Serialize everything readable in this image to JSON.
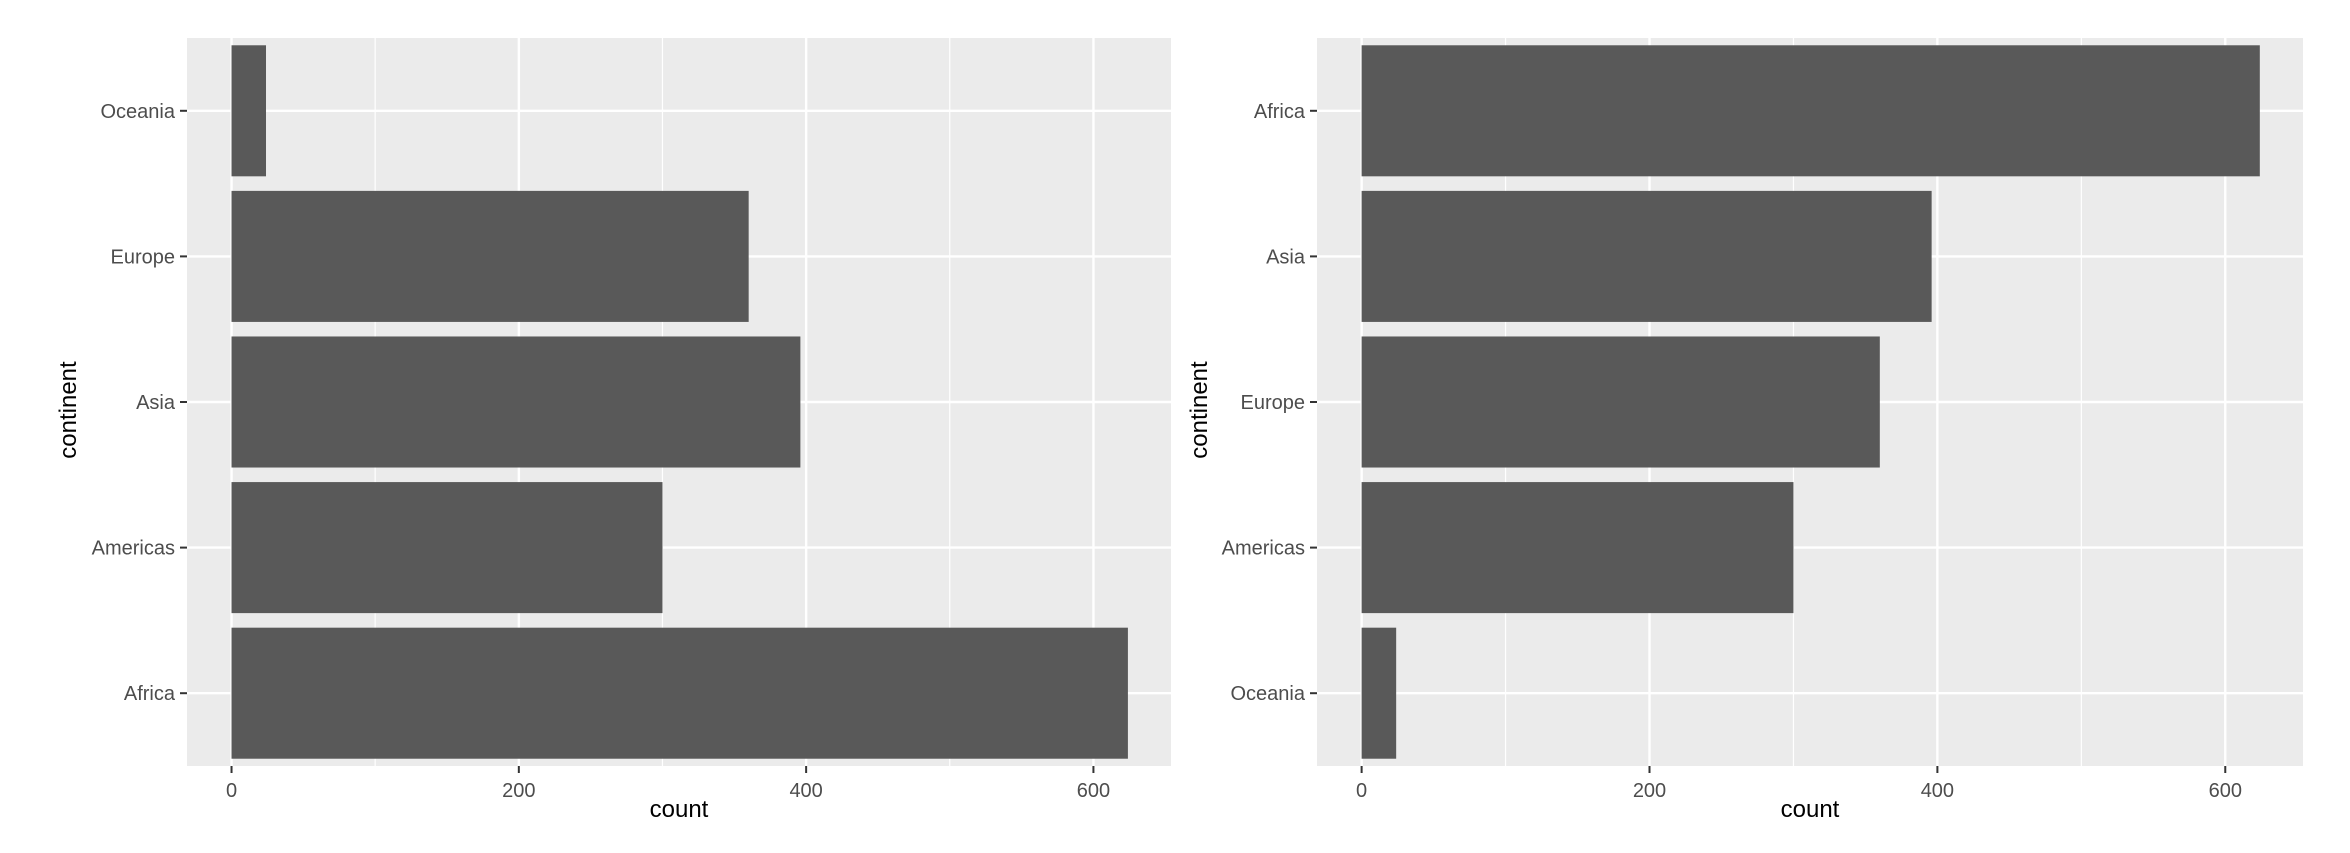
{
  "colors": {
    "panel_background": "#ebebeb",
    "grid_major": "#ffffff",
    "bar_fill": "#595959",
    "tick_text": "#4d4d4d",
    "tick_mark": "#333333"
  },
  "chart_data": [
    {
      "type": "bar",
      "orientation": "horizontal",
      "categories": [
        "Africa",
        "Americas",
        "Asia",
        "Europe",
        "Oceania"
      ],
      "values": [
        624,
        300,
        396,
        360,
        24
      ],
      "xlabel": "count",
      "ylabel": "continent",
      "xlim": [
        -31,
        654
      ],
      "xticks": [
        0,
        200,
        400,
        600
      ],
      "x_tick_labels": [
        "0",
        "200",
        "400",
        "600"
      ],
      "grid": true,
      "legend": "none"
    },
    {
      "type": "bar",
      "orientation": "horizontal",
      "categories": [
        "Oceania",
        "Americas",
        "Europe",
        "Asia",
        "Africa"
      ],
      "values": [
        24,
        300,
        360,
        396,
        624
      ],
      "xlabel": "count",
      "ylabel": "continent",
      "xlim": [
        -31,
        654
      ],
      "xticks": [
        0,
        200,
        400,
        600
      ],
      "x_tick_labels": [
        "0",
        "200",
        "400",
        "600"
      ],
      "grid": true,
      "legend": "none"
    }
  ]
}
